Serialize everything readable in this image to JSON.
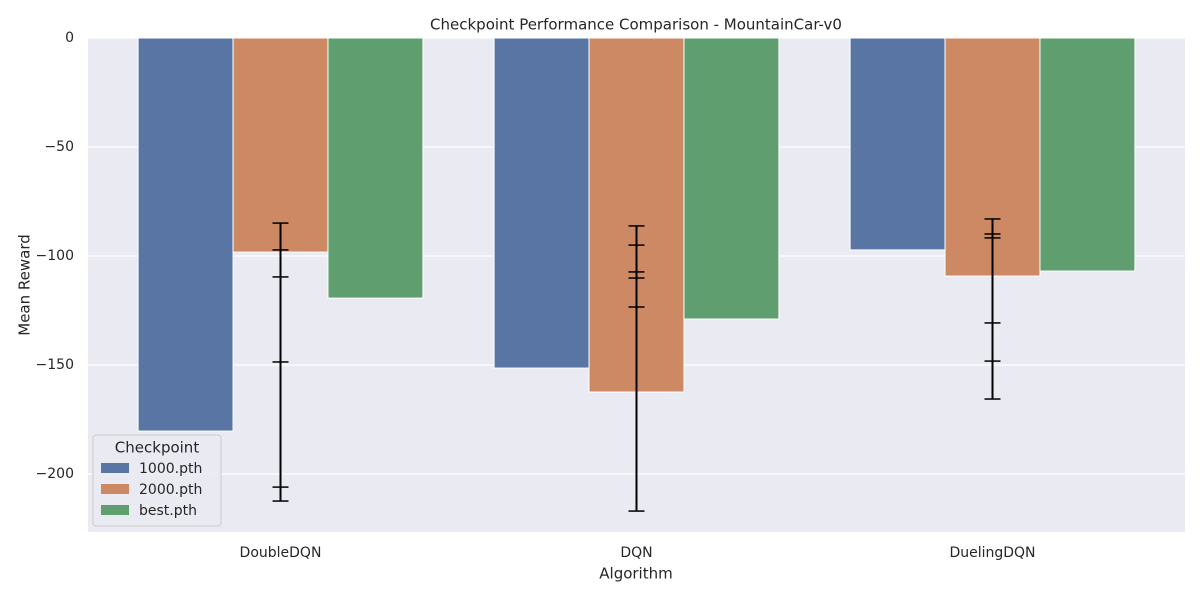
{
  "chart_data": {
    "type": "bar",
    "title": "Checkpoint Performance Comparison - MountainCar-v0",
    "x_label": "Algorithm",
    "y_label": "Mean Reward",
    "categories": [
      "DoubleDQN",
      "DQN",
      "DuelingDQN"
    ],
    "legend_title": "Checkpoint",
    "legend_position": "lower left",
    "grid": true,
    "ylim": [
      -226.6,
      0
    ],
    "yticks": [
      {
        "value": -200,
        "label": "−200"
      },
      {
        "value": -150,
        "label": "−150"
      },
      {
        "value": -100,
        "label": "−100"
      },
      {
        "value": -50,
        "label": "−50"
      },
      0
    ],
    "series": [
      {
        "name": "1000.pth",
        "color": "#5975a4",
        "values": [
          -180.3,
          -151.4,
          -97.2
        ],
        "error_low": [
          -212.4,
          -217,
          -165.6
        ],
        "error_high": [
          -84.9,
          -86.2,
          -83
        ]
      },
      {
        "name": "2000.pth",
        "color": "#cc8963",
        "values": [
          -98.2,
          -162.4,
          -109.2
        ],
        "error_low": [
          -206,
          -123.4,
          -148.2
        ],
        "error_high": [
          -97.2,
          -95,
          -89.9
        ]
      },
      {
        "name": "best.pth",
        "color": "#5f9e6e",
        "values": [
          -119.3,
          -128.9,
          -106.9
        ],
        "error_low": [
          -148.6,
          -110.1,
          -130.7
        ],
        "error_high": [
          -109.6,
          -107.3,
          -91.7
        ]
      }
    ]
  }
}
